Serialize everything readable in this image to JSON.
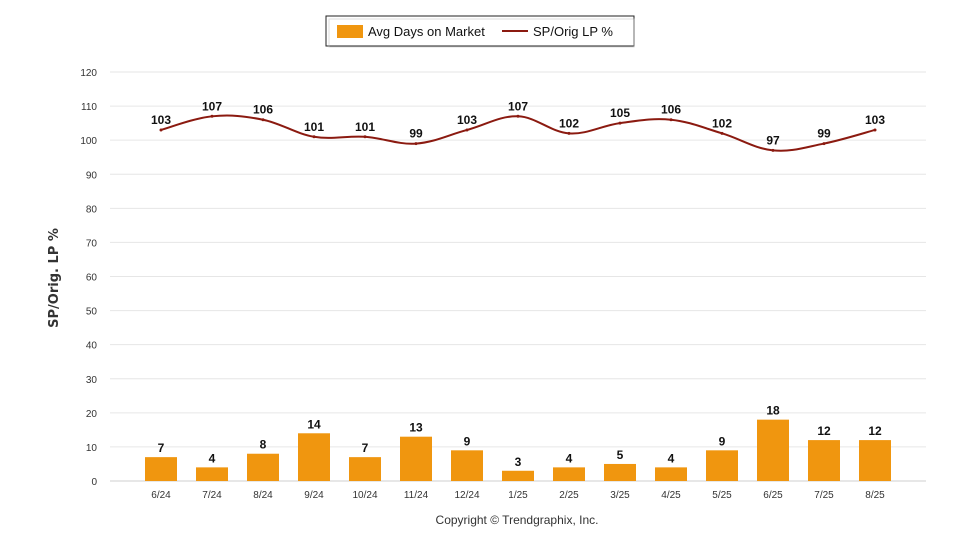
{
  "chart_data": {
    "type": "bar",
    "categories": [
      "6/24",
      "7/24",
      "8/24",
      "9/24",
      "10/24",
      "11/24",
      "12/24",
      "1/25",
      "2/25",
      "3/25",
      "4/25",
      "5/25",
      "6/25",
      "7/25",
      "8/25"
    ],
    "series": [
      {
        "name": "Avg Days on Market",
        "type": "bar",
        "color": "#f0960f",
        "values": [
          7,
          4,
          8,
          14,
          7,
          13,
          9,
          3,
          4,
          5,
          4,
          9,
          18,
          12,
          12
        ]
      },
      {
        "name": "SP/Orig LP %",
        "type": "line",
        "color": "#8b1a10",
        "values": [
          103,
          107,
          106,
          101,
          101,
          99,
          103,
          107,
          102,
          105,
          106,
          102,
          97,
          99,
          103
        ]
      }
    ],
    "ylabel": "SP/Orig. LP %",
    "ylim": [
      0,
      120
    ],
    "yticks": [
      0,
      10,
      20,
      30,
      40,
      50,
      60,
      70,
      80,
      90,
      100,
      110,
      120
    ],
    "grid": true,
    "legend": "top-center",
    "footer": "Copyright © Trendgraphix, Inc."
  }
}
